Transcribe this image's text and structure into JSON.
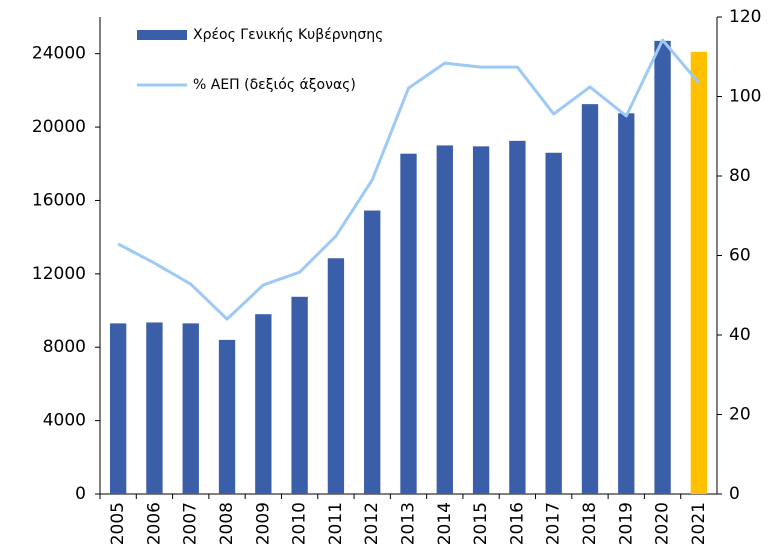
{
  "chart_data": {
    "type": "bar_line",
    "categories": [
      "2005",
      "2006",
      "2007",
      "2008",
      "2009",
      "2010",
      "2011",
      "2012",
      "2013",
      "2014",
      "2015",
      "2016",
      "2017",
      "2018",
      "2019",
      "2020",
      "2021"
    ],
    "series": [
      {
        "name": "Χρέος Γενικής  Κυβέρνησης",
        "type": "bar",
        "color": "#3b5ea9",
        "colors": [
          "#3b5ea9",
          "#3b5ea9",
          "#3b5ea9",
          "#3b5ea9",
          "#3b5ea9",
          "#3b5ea9",
          "#3b5ea9",
          "#3b5ea9",
          "#3b5ea9",
          "#3b5ea9",
          "#3b5ea9",
          "#3b5ea9",
          "#3b5ea9",
          "#3b5ea9",
          "#3b5ea9",
          "#3b5ea9",
          "#ffc000"
        ],
        "values": [
          9300,
          9350,
          9300,
          8400,
          9800,
          10750,
          12850,
          15450,
          18550,
          19000,
          18950,
          19250,
          18600,
          21250,
          20750,
          24700,
          24100
        ]
      },
      {
        "name": "% ΑΕΠ (δεξιός άξονας)",
        "type": "line",
        "axis": "y2",
        "color": "#9dc9f5",
        "values": [
          62.9,
          58.1,
          52.8,
          44.0,
          52.6,
          55.8,
          64.9,
          79.0,
          102.1,
          108.4,
          107.4,
          107.4,
          95.6,
          102.4,
          95.1,
          114.2,
          103.4
        ]
      }
    ],
    "ylim": [
      0,
      26000
    ],
    "yticks": [
      0,
      4000,
      8000,
      12000,
      16000,
      20000,
      24000
    ],
    "y2lim": [
      0,
      120
    ],
    "y2ticks": [
      0,
      20,
      40,
      60,
      80,
      100,
      120
    ],
    "grid": false,
    "legend": "top-left"
  }
}
